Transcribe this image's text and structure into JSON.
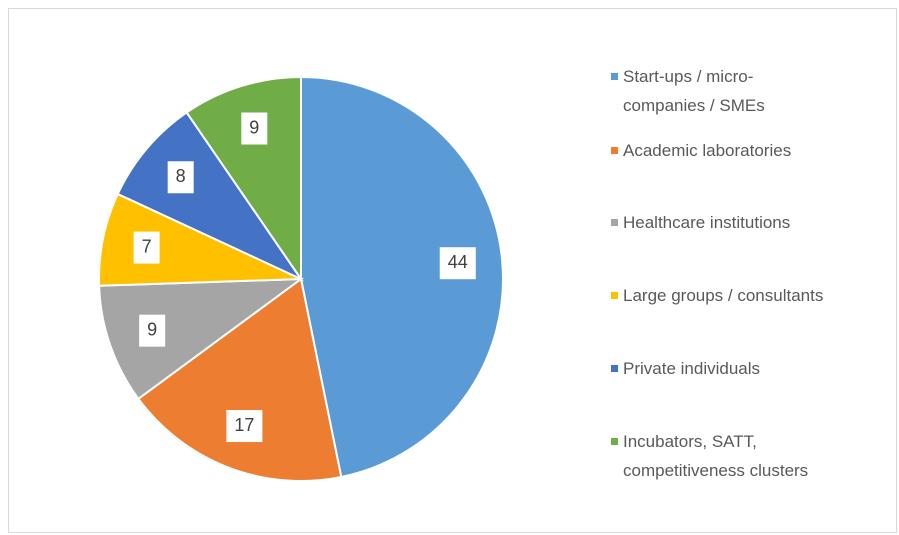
{
  "chart_data": {
    "type": "pie",
    "categories": [
      "Start-ups / micro-companies / SMEs",
      "Academic laboratories",
      "Healthcare institutions",
      "Large groups / consultants",
      "Private individuals",
      "Incubators, SATT, competitiveness clusters"
    ],
    "values": [
      44,
      17,
      9,
      7,
      8,
      9
    ],
    "colors": [
      "#5b9bd5",
      "#ed7d31",
      "#a5a5a5",
      "#ffc000",
      "#4472c4",
      "#70ad47"
    ],
    "legend": "right"
  }
}
